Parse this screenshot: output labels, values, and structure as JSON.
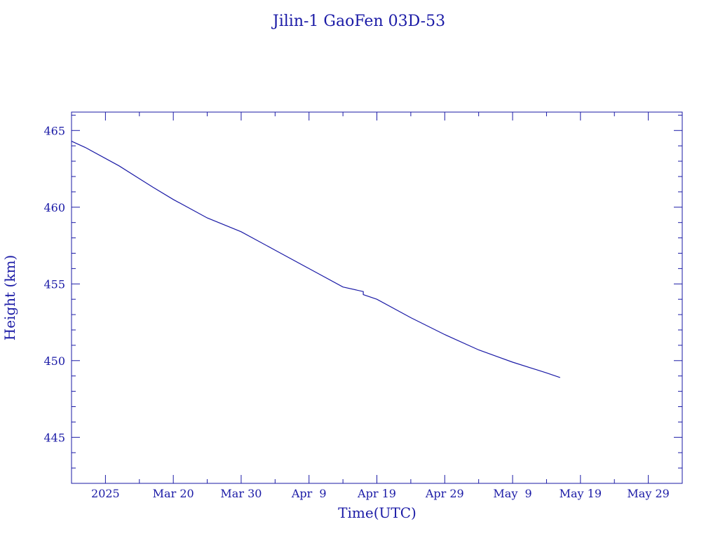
{
  "chart_data": {
    "type": "line",
    "title": "Jilin-1 GaoFen 03D-53",
    "xlabel": "Time(UTC)",
    "ylabel": "Height (km)",
    "xlim": [
      "2025-03-05",
      "2025-06-03"
    ],
    "ylim": [
      442,
      466.2
    ],
    "x_ticks": [
      {
        "date": "2025-03-10",
        "label": "2025"
      },
      {
        "date": "2025-03-20",
        "label": "Mar 20"
      },
      {
        "date": "2025-03-30",
        "label": "Mar 30"
      },
      {
        "date": "2025-04-09",
        "label": "Apr  9"
      },
      {
        "date": "2025-04-19",
        "label": "Apr 19"
      },
      {
        "date": "2025-04-29",
        "label": "Apr 29"
      },
      {
        "date": "2025-05-09",
        "label": "May  9"
      },
      {
        "date": "2025-05-19",
        "label": "May 19"
      },
      {
        "date": "2025-05-29",
        "label": "May 29"
      }
    ],
    "y_ticks": [
      445,
      450,
      455,
      460,
      465
    ],
    "grid": false,
    "color": "#1a1aa6",
    "series": [
      {
        "points": [
          [
            "2025-03-05",
            464.3
          ],
          [
            "2025-03-07",
            463.9
          ],
          [
            "2025-03-12",
            462.7
          ],
          [
            "2025-03-17",
            461.3
          ],
          [
            "2025-03-20",
            460.5
          ],
          [
            "2025-03-25",
            459.3
          ],
          [
            "2025-03-30",
            458.4
          ],
          [
            "2025-04-04",
            457.2
          ],
          [
            "2025-04-09",
            456.0
          ],
          [
            "2025-04-14",
            454.8
          ],
          [
            "2025-04-17",
            454.5
          ],
          [
            "2025-04-17",
            454.3
          ],
          [
            "2025-04-19",
            454.0
          ],
          [
            "2025-04-24",
            452.8
          ],
          [
            "2025-04-29",
            451.7
          ],
          [
            "2025-05-04",
            450.7
          ],
          [
            "2025-05-09",
            449.9
          ],
          [
            "2025-05-14",
            449.2
          ],
          [
            "2025-05-16",
            448.9
          ]
        ]
      }
    ]
  }
}
